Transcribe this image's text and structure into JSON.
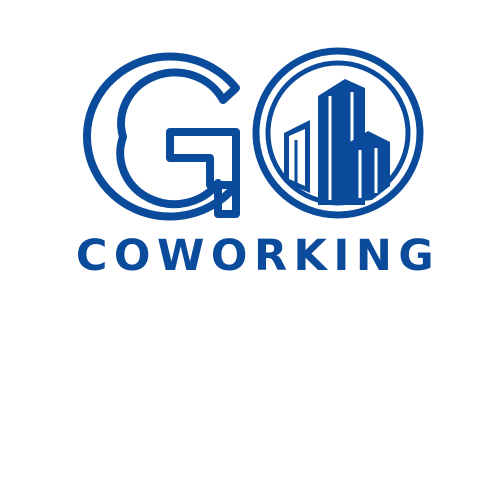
{
  "brand": {
    "letter_g": "G",
    "wordmark": "COWORKING",
    "primary_color": "#0a4b9c",
    "background_color": "#ffffff"
  },
  "icons": {
    "g_mark": "outlined-letter-g-icon",
    "emblem": "circle-buildings-icon"
  }
}
